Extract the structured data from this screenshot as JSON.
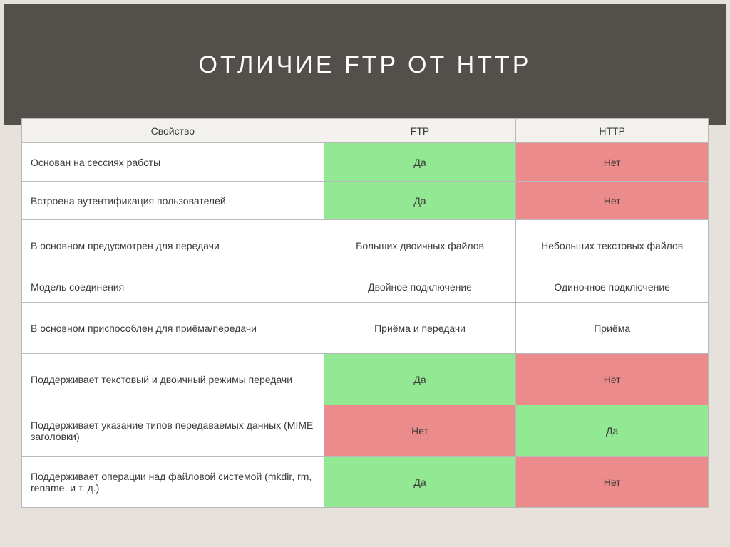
{
  "title": "ОТЛИЧИЕ FTP ОТ HTTP",
  "columns": [
    "Свойство",
    "FTP",
    "HTTP"
  ],
  "colors": {
    "green": "#93e993",
    "red": "#eb8b8b",
    "plain": "#ffffff",
    "header_bg": "#53504b",
    "frame_bg": "#e6e1da",
    "cell_border": "#b9b9b9"
  },
  "rows": [
    {
      "h": "h-mid",
      "prop": "Основан на сессиях работы",
      "ftp": {
        "text": "Да",
        "bg": "green"
      },
      "http": {
        "text": "Нет",
        "bg": "red"
      }
    },
    {
      "h": "h-mid",
      "prop": "Встроена аутентификация пользователей",
      "ftp": {
        "text": "Да",
        "bg": "green"
      },
      "http": {
        "text": "Нет",
        "bg": "red"
      }
    },
    {
      "h": "h-tall",
      "prop": "В основном предусмотрен для передачи",
      "ftp": {
        "text": "Больших двоичных файлов",
        "bg": "plain"
      },
      "http": {
        "text": "Небольших текстовых файлов",
        "bg": "plain"
      }
    },
    {
      "h": "h-short",
      "prop": "Модель соединения",
      "ftp": {
        "text": "Двойное подключение",
        "bg": "plain"
      },
      "http": {
        "text": "Одиночное подключение",
        "bg": "plain"
      }
    },
    {
      "h": "h-tall",
      "prop": "В основном приспособлен для приёма/передачи",
      "ftp": {
        "text": "Приёма и передачи",
        "bg": "plain"
      },
      "http": {
        "text": "Приёма",
        "bg": "plain"
      }
    },
    {
      "h": "h-tall",
      "prop": "Поддерживает текстовый и двоичный режимы передачи",
      "ftp": {
        "text": "Да",
        "bg": "green"
      },
      "http": {
        "text": "Нет",
        "bg": "red"
      }
    },
    {
      "h": "h-tall",
      "prop": "Поддерживает указание типов передаваемых данных (MIME заголовки)",
      "ftp": {
        "text": "Нет",
        "bg": "red"
      },
      "http": {
        "text": "Да",
        "bg": "green"
      }
    },
    {
      "h": "h-tall",
      "prop": "Поддерживает операции над файловой системой (mkdir, rm, rename, и т. д.)",
      "ftp": {
        "text": "Да",
        "bg": "green"
      },
      "http": {
        "text": "Нет",
        "bg": "red"
      }
    }
  ]
}
